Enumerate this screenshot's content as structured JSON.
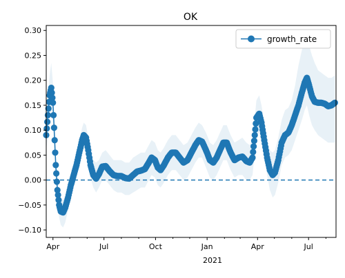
{
  "chart_data": {
    "type": "line",
    "title": "OK",
    "xlabel": "",
    "ylabel": "",
    "ylim": [
      -0.115,
      0.31
    ],
    "xlim": [
      "2020-03-20",
      "2021-08-19"
    ],
    "grid": false,
    "legend_position": "upper right",
    "x_ticks": [
      {
        "date": "2020-04-01",
        "label": "Apr"
      },
      {
        "date": "2020-07-01",
        "label": "Jul"
      },
      {
        "date": "2020-10-01",
        "label": "Oct"
      },
      {
        "date": "2021-01-01",
        "label": "Jan"
      },
      {
        "date": "2021-04-01",
        "label": "Apr"
      },
      {
        "date": "2021-07-01",
        "label": "Jul"
      }
    ],
    "x_secondary_label": "2021",
    "y_ticks": [
      -0.1,
      -0.05,
      0.0,
      0.05,
      0.1,
      0.15,
      0.2,
      0.25,
      0.3
    ],
    "y_tick_labels": [
      "−0.10",
      "−0.05",
      "0.00",
      "0.05",
      "0.10",
      "0.15",
      "0.20",
      "0.25",
      "0.30"
    ],
    "reference_line": {
      "y": 0.0,
      "style": "dashed"
    },
    "series": [
      {
        "name": "growth_rate",
        "color": "#1f77b4",
        "band_color": "#1f77b4",
        "points": [
          [
            "2020-03-20",
            0.09,
            0.06,
            0.12
          ],
          [
            "2020-03-23",
            0.13,
            0.09,
            0.17
          ],
          [
            "2020-03-26",
            0.17,
            0.13,
            0.21
          ],
          [
            "2020-03-29",
            0.185,
            0.14,
            0.235
          ],
          [
            "2020-04-01",
            0.155,
            0.115,
            0.195
          ],
          [
            "2020-04-04",
            0.08,
            0.05,
            0.11
          ],
          [
            "2020-04-06",
            0.03,
            0.005,
            0.055
          ],
          [
            "2020-04-09",
            -0.02,
            -0.045,
            0.005
          ],
          [
            "2020-04-12",
            -0.05,
            -0.075,
            -0.025
          ],
          [
            "2020-04-15",
            -0.063,
            -0.09,
            -0.04
          ],
          [
            "2020-04-19",
            -0.065,
            -0.095,
            -0.04
          ],
          [
            "2020-04-23",
            -0.055,
            -0.085,
            -0.03
          ],
          [
            "2020-04-28",
            -0.035,
            -0.06,
            -0.01
          ],
          [
            "2020-05-03",
            -0.01,
            -0.035,
            0.015
          ],
          [
            "2020-05-08",
            0.01,
            -0.015,
            0.035
          ],
          [
            "2020-05-13",
            0.03,
            0.005,
            0.055
          ],
          [
            "2020-05-18",
            0.055,
            0.03,
            0.08
          ],
          [
            "2020-05-23",
            0.08,
            0.055,
            0.105
          ],
          [
            "2020-05-26",
            0.09,
            0.065,
            0.115
          ],
          [
            "2020-05-30",
            0.085,
            0.06,
            0.11
          ],
          [
            "2020-06-03",
            0.06,
            0.035,
            0.085
          ],
          [
            "2020-06-07",
            0.03,
            0.005,
            0.055
          ],
          [
            "2020-06-12",
            0.01,
            -0.015,
            0.04
          ],
          [
            "2020-06-17",
            0.003,
            -0.025,
            0.035
          ],
          [
            "2020-06-22",
            0.012,
            -0.015,
            0.04
          ],
          [
            "2020-06-28",
            0.027,
            0.0,
            0.055
          ],
          [
            "2020-07-04",
            0.028,
            0.0,
            0.06
          ],
          [
            "2020-07-11",
            0.018,
            -0.01,
            0.05
          ],
          [
            "2020-07-18",
            0.01,
            -0.02,
            0.04
          ],
          [
            "2020-07-25",
            0.008,
            -0.025,
            0.04
          ],
          [
            "2020-08-01",
            0.008,
            -0.025,
            0.04
          ],
          [
            "2020-08-08",
            0.004,
            -0.03,
            0.035
          ],
          [
            "2020-08-15",
            0.003,
            -0.03,
            0.035
          ],
          [
            "2020-08-22",
            0.01,
            -0.025,
            0.045
          ],
          [
            "2020-08-29",
            0.017,
            -0.02,
            0.05
          ],
          [
            "2020-09-05",
            0.019,
            -0.015,
            0.055
          ],
          [
            "2020-09-12",
            0.022,
            -0.015,
            0.055
          ],
          [
            "2020-09-19",
            0.035,
            0.0,
            0.07
          ],
          [
            "2020-09-24",
            0.045,
            0.01,
            0.08
          ],
          [
            "2020-09-30",
            0.04,
            0.005,
            0.075
          ],
          [
            "2020-10-05",
            0.025,
            -0.01,
            0.06
          ],
          [
            "2020-10-10",
            0.02,
            -0.015,
            0.055
          ],
          [
            "2020-10-16",
            0.03,
            -0.005,
            0.065
          ],
          [
            "2020-10-23",
            0.045,
            0.01,
            0.08
          ],
          [
            "2020-10-30",
            0.055,
            0.02,
            0.09
          ],
          [
            "2020-11-06",
            0.055,
            0.02,
            0.09
          ],
          [
            "2020-11-13",
            0.045,
            0.01,
            0.08
          ],
          [
            "2020-11-20",
            0.035,
            0.0,
            0.07
          ],
          [
            "2020-11-27",
            0.04,
            0.005,
            0.075
          ],
          [
            "2020-12-04",
            0.055,
            0.02,
            0.09
          ],
          [
            "2020-12-11",
            0.07,
            0.035,
            0.105
          ],
          [
            "2020-12-17",
            0.08,
            0.045,
            0.115
          ],
          [
            "2020-12-23",
            0.077,
            0.045,
            0.11
          ],
          [
            "2020-12-30",
            0.06,
            0.025,
            0.095
          ],
          [
            "2021-01-06",
            0.04,
            0.005,
            0.075
          ],
          [
            "2021-01-12",
            0.035,
            0.0,
            0.07
          ],
          [
            "2021-01-18",
            0.045,
            0.01,
            0.08
          ],
          [
            "2021-01-24",
            0.06,
            0.025,
            0.095
          ],
          [
            "2021-01-30",
            0.075,
            0.04,
            0.11
          ],
          [
            "2021-02-05",
            0.075,
            0.04,
            0.11
          ],
          [
            "2021-02-12",
            0.055,
            0.02,
            0.09
          ],
          [
            "2021-02-19",
            0.04,
            0.005,
            0.075
          ],
          [
            "2021-02-26",
            0.045,
            0.01,
            0.08
          ],
          [
            "2021-03-05",
            0.047,
            0.01,
            0.085
          ],
          [
            "2021-03-12",
            0.038,
            0.0,
            0.075
          ],
          [
            "2021-03-18",
            0.035,
            0.0,
            0.07
          ],
          [
            "2021-03-23",
            0.045,
            0.01,
            0.08
          ],
          [
            "2021-03-27",
            0.09,
            0.055,
            0.125
          ],
          [
            "2021-03-30",
            0.125,
            0.09,
            0.16
          ],
          [
            "2021-04-04",
            0.133,
            0.095,
            0.17
          ],
          [
            "2021-04-08",
            0.115,
            0.08,
            0.15
          ],
          [
            "2021-04-13",
            0.08,
            0.045,
            0.115
          ],
          [
            "2021-04-18",
            0.045,
            0.01,
            0.08
          ],
          [
            "2021-04-23",
            0.02,
            -0.02,
            0.06
          ],
          [
            "2021-04-28",
            0.01,
            -0.035,
            0.055
          ],
          [
            "2021-05-02",
            0.015,
            -0.03,
            0.06
          ],
          [
            "2021-05-08",
            0.04,
            -0.005,
            0.085
          ],
          [
            "2021-05-14",
            0.075,
            0.03,
            0.12
          ],
          [
            "2021-05-20",
            0.09,
            0.045,
            0.14
          ],
          [
            "2021-05-26",
            0.095,
            0.05,
            0.145
          ],
          [
            "2021-06-01",
            0.11,
            0.06,
            0.16
          ],
          [
            "2021-06-07",
            0.13,
            0.08,
            0.19
          ],
          [
            "2021-06-13",
            0.15,
            0.1,
            0.23
          ],
          [
            "2021-06-19",
            0.175,
            0.12,
            0.26
          ],
          [
            "2021-06-24",
            0.195,
            0.14,
            0.285
          ],
          [
            "2021-06-28",
            0.205,
            0.15,
            0.29
          ],
          [
            "2021-07-02",
            0.19,
            0.13,
            0.27
          ],
          [
            "2021-07-07",
            0.168,
            0.11,
            0.25
          ],
          [
            "2021-07-12",
            0.157,
            0.1,
            0.235
          ],
          [
            "2021-07-18",
            0.155,
            0.09,
            0.22
          ],
          [
            "2021-07-24",
            0.155,
            0.085,
            0.215
          ],
          [
            "2021-07-30",
            0.153,
            0.08,
            0.21
          ],
          [
            "2021-08-05",
            0.148,
            0.075,
            0.205
          ],
          [
            "2021-08-11",
            0.15,
            0.075,
            0.205
          ],
          [
            "2021-08-17",
            0.155,
            0.075,
            0.21
          ]
        ]
      }
    ]
  }
}
